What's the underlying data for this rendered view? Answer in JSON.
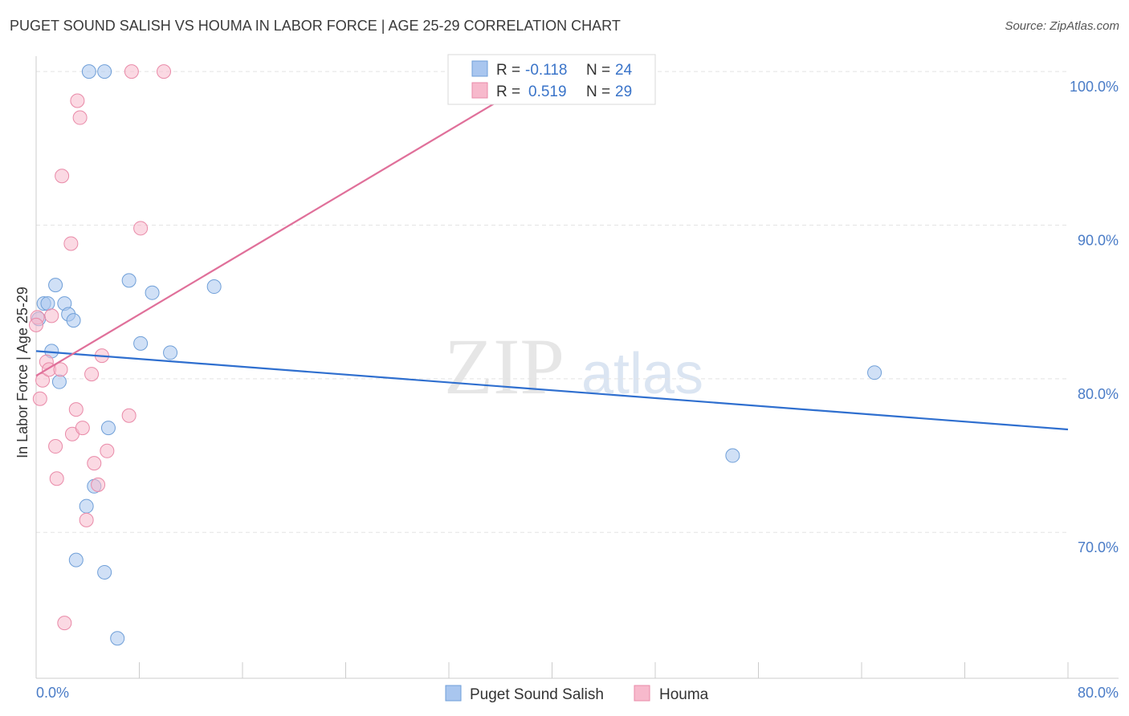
{
  "title": "PUGET SOUND SALISH VS HOUMA IN LABOR FORCE | AGE 25-29 CORRELATION CHART",
  "source": "Source: ZipAtlas.com",
  "watermark": {
    "zip": "ZIP",
    "atlas": "atlas"
  },
  "chart_data": {
    "type": "scatter",
    "xlabel": "",
    "ylabel": "In Labor Force | Age 25-29",
    "xlim": [
      0,
      80
    ],
    "ylim": [
      60.5,
      101
    ],
    "x_tick_labels": [
      {
        "value": 0,
        "label": "0.0%"
      },
      {
        "value": 80,
        "label": "80.0%"
      }
    ],
    "y_tick_labels": [
      {
        "value": 100,
        "label": "100.0%"
      },
      {
        "value": 90,
        "label": "90.0%"
      },
      {
        "value": 80,
        "label": "80.0%"
      },
      {
        "value": 70,
        "label": "70.0%"
      }
    ],
    "grid": true,
    "legend_position": "top-center",
    "series": [
      {
        "name": "Puget Sound Salish",
        "color": "#a9c6ef",
        "edge": "#6f9fd8",
        "line_color": "#2f6fcf",
        "R": "-0.118",
        "N": "24",
        "trend": {
          "x": [
            0,
            80
          ],
          "y": [
            81.8,
            76.7
          ]
        },
        "points": [
          [
            0.2,
            83.9
          ],
          [
            0.6,
            84.9
          ],
          [
            0.9,
            84.9
          ],
          [
            1.2,
            81.8
          ],
          [
            1.5,
            86.1
          ],
          [
            1.8,
            79.8
          ],
          [
            2.2,
            84.9
          ],
          [
            2.5,
            84.2
          ],
          [
            2.9,
            83.8
          ],
          [
            3.1,
            68.2
          ],
          [
            3.9,
            71.7
          ],
          [
            4.5,
            73.0
          ],
          [
            4.1,
            100.0
          ],
          [
            5.3,
            100.0
          ],
          [
            5.3,
            67.4
          ],
          [
            5.6,
            76.8
          ],
          [
            6.3,
            63.1
          ],
          [
            7.2,
            86.4
          ],
          [
            8.1,
            82.3
          ],
          [
            9.0,
            85.6
          ],
          [
            10.4,
            81.7
          ],
          [
            13.8,
            86.0
          ],
          [
            54.0,
            75.0
          ],
          [
            65.0,
            80.4
          ]
        ]
      },
      {
        "name": "Houma",
        "color": "#f7b9cc",
        "edge": "#e98aa8",
        "line_color": "#e0709a",
        "R": "0.519",
        "N": "29",
        "trend": {
          "x": [
            0,
            40.3
          ],
          "y": [
            80.2,
            100.3
          ]
        },
        "points": [
          [
            0.1,
            84.0
          ],
          [
            0.3,
            78.7
          ],
          [
            0.5,
            79.9
          ],
          [
            0.8,
            81.1
          ],
          [
            1.0,
            80.6
          ],
          [
            1.2,
            84.1
          ],
          [
            1.5,
            75.6
          ],
          [
            1.6,
            73.5
          ],
          [
            1.9,
            80.6
          ],
          [
            2.0,
            93.2
          ],
          [
            2.2,
            64.1
          ],
          [
            2.7,
            88.8
          ],
          [
            2.8,
            76.4
          ],
          [
            3.1,
            78.0
          ],
          [
            3.2,
            98.1
          ],
          [
            3.4,
            97.0
          ],
          [
            3.6,
            76.8
          ],
          [
            3.9,
            70.8
          ],
          [
            4.3,
            80.3
          ],
          [
            4.5,
            74.5
          ],
          [
            4.8,
            73.1
          ],
          [
            5.1,
            81.5
          ],
          [
            5.5,
            75.3
          ],
          [
            7.2,
            77.6
          ],
          [
            7.4,
            100.0
          ],
          [
            8.1,
            89.8
          ],
          [
            9.9,
            100.0
          ],
          [
            40.3,
            100.0
          ],
          [
            0.0,
            83.5
          ]
        ]
      }
    ]
  }
}
